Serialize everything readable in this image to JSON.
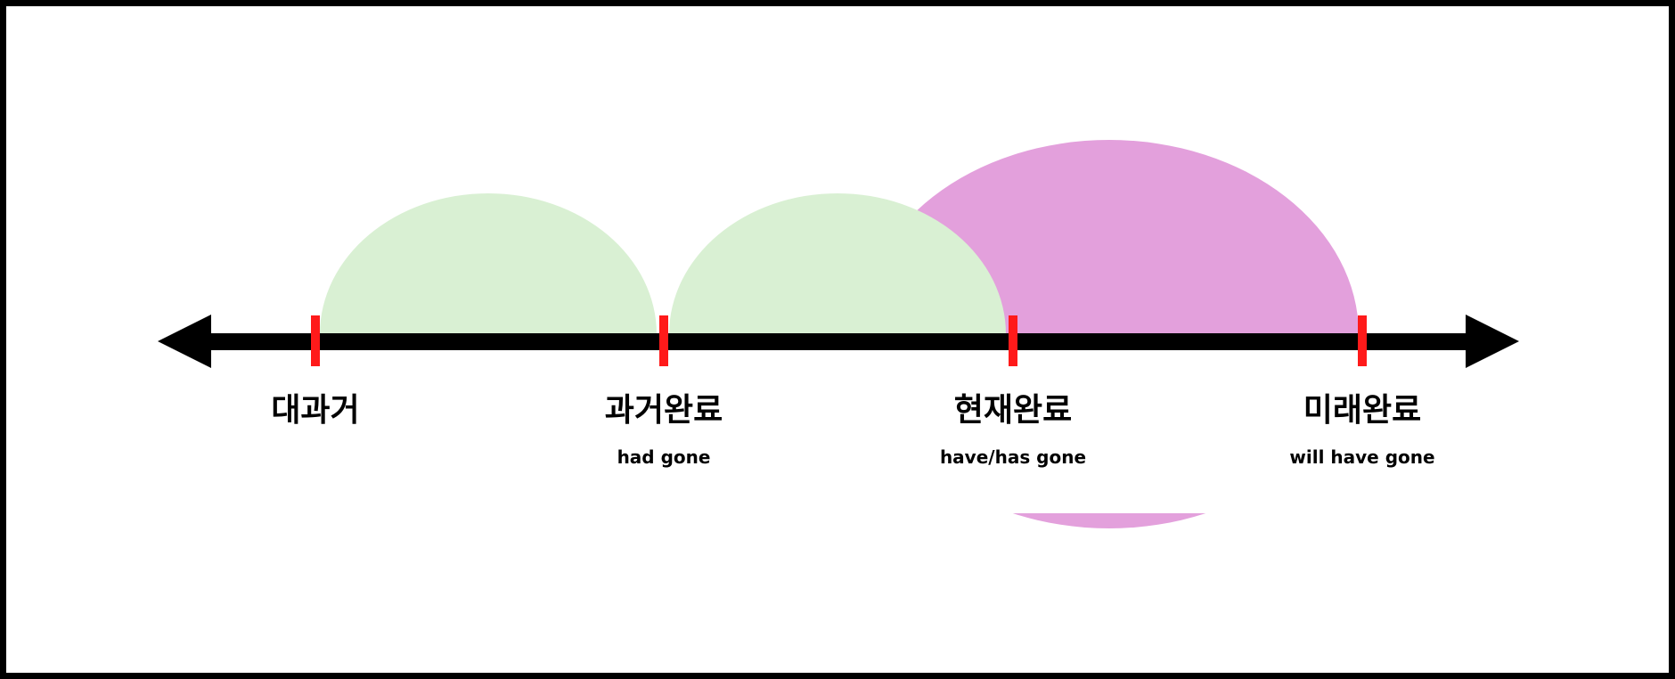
{
  "colors": {
    "line": "#000000",
    "tick": "#ff1a1a",
    "green_arc": "#d9f0d3",
    "pink_arc": "#e3a0dc"
  },
  "timeline": {
    "points": [
      {
        "korean": "대과거",
        "english": ""
      },
      {
        "korean": "과거완료",
        "english": "had gone"
      },
      {
        "korean": "현재완료",
        "english": "have/has gone"
      },
      {
        "korean": "미래완료",
        "english": "will have gone"
      }
    ]
  }
}
